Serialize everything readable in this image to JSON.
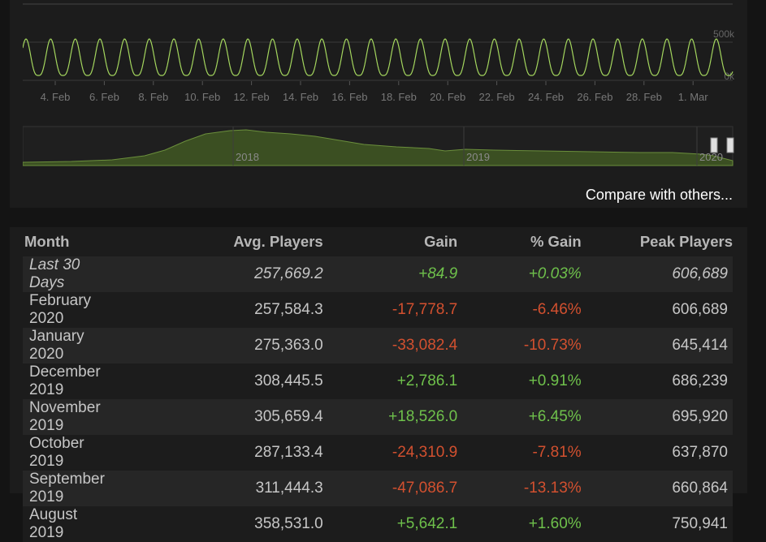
{
  "chart": {
    "date_labels": [
      "4. Feb",
      "6. Feb",
      "8. Feb",
      "10. Feb",
      "12. Feb",
      "14. Feb",
      "16. Feb",
      "18. Feb",
      "20. Feb",
      "22. Feb",
      "24. Feb",
      "26. Feb",
      "28. Feb",
      "1. Mar"
    ],
    "y_labels": [
      "500k",
      "0k"
    ],
    "nav_year_labels": [
      "2018",
      "2019",
      "2020"
    ],
    "line_color": "#a4d65e",
    "area_color": "#3b4f22"
  },
  "compare_link": "Compare with others...",
  "table": {
    "headers": {
      "month": "Month",
      "avg": "Avg. Players",
      "gain": "Gain",
      "pct": "% Gain",
      "peak": "Peak Players"
    },
    "rows": [
      {
        "month": "Last 30 Days",
        "avg": "257,669.2",
        "gain": "+84.9",
        "pct": "+0.03%",
        "peak": "606,689"
      },
      {
        "month": "February 2020",
        "avg": "257,584.3",
        "gain": "-17,778.7",
        "pct": "-6.46%",
        "peak": "606,689"
      },
      {
        "month": "January 2020",
        "avg": "275,363.0",
        "gain": "-33,082.4",
        "pct": "-10.73%",
        "peak": "645,414"
      },
      {
        "month": "December 2019",
        "avg": "308,445.5",
        "gain": "+2,786.1",
        "pct": "+0.91%",
        "peak": "686,239"
      },
      {
        "month": "November 2019",
        "avg": "305,659.4",
        "gain": "+18,526.0",
        "pct": "+6.45%",
        "peak": "695,920"
      },
      {
        "month": "October 2019",
        "avg": "287,133.4",
        "gain": "-24,310.9",
        "pct": "-7.81%",
        "peak": "637,870"
      },
      {
        "month": "September 2019",
        "avg": "311,444.3",
        "gain": "-47,086.7",
        "pct": "-13.13%",
        "peak": "660,864"
      },
      {
        "month": "August 2019",
        "avg": "358,531.0",
        "gain": "+5,642.1",
        "pct": "+1.60%",
        "peak": "750,941"
      }
    ]
  }
}
